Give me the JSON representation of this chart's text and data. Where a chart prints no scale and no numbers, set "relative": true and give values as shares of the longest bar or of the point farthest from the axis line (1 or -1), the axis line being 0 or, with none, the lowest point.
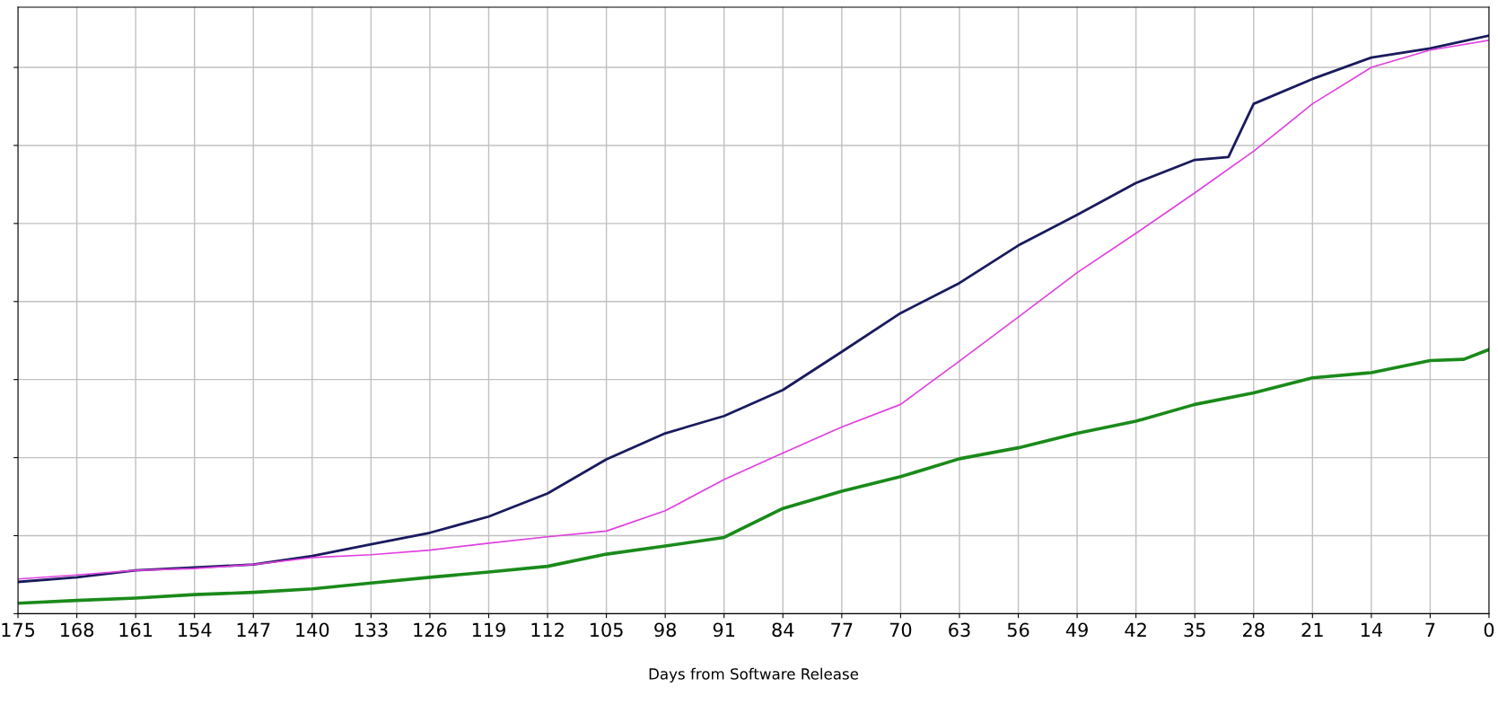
{
  "chart_data": {
    "type": "line",
    "xlabel": "Days from Software Release",
    "relative": true,
    "grid": true,
    "tick_labels": "x",
    "line_style": "solid",
    "marker": "none",
    "xlim": [
      175,
      0
    ],
    "xticks": [
      175,
      168,
      161,
      154,
      147,
      140,
      133,
      126,
      119,
      112,
      105,
      98,
      91,
      84,
      77,
      70,
      63,
      56,
      49,
      42,
      35,
      28,
      21,
      14,
      7,
      0
    ],
    "x": [
      175,
      168,
      161,
      154,
      147,
      140,
      133,
      126,
      119,
      112,
      105,
      98,
      91,
      84,
      77,
      70,
      63,
      56,
      49,
      42,
      35,
      28,
      21,
      14,
      7,
      0
    ],
    "series": [
      {
        "color": "#1a1a5e",
        "x": [
          175,
          168,
          161,
          154,
          147,
          140,
          133,
          126,
          119,
          112,
          105,
          98,
          91,
          84,
          77,
          70,
          63,
          56,
          49,
          42,
          35,
          31,
          28,
          21,
          14,
          7,
          0
        ],
        "values": [
          0.055,
          0.063,
          0.075,
          0.08,
          0.085,
          0.1,
          0.12,
          0.14,
          0.168,
          0.208,
          0.267,
          0.312,
          0.342,
          0.387,
          0.453,
          0.52,
          0.572,
          0.637,
          0.69,
          0.745,
          0.785,
          0.79,
          0.882,
          0.925,
          0.962,
          0.978,
          1.0
        ]
      },
      {
        "color": "#e040e0",
        "values": [
          0.06,
          0.067,
          0.075,
          0.078,
          0.085,
          0.097,
          0.102,
          0.11,
          0.122,
          0.133,
          0.143,
          0.178,
          0.232,
          0.278,
          0.323,
          0.362,
          0.437,
          0.513,
          0.59,
          0.658,
          0.728,
          0.8,
          0.882,
          0.945,
          0.975,
          0.992
        ]
      },
      {
        "color": "#1a8a1a",
        "x": [
          175,
          168,
          161,
          154,
          147,
          140,
          133,
          126,
          119,
          112,
          105,
          98,
          91,
          84,
          77,
          70,
          63,
          56,
          49,
          42,
          35,
          28,
          21,
          14,
          7,
          3,
          0
        ],
        "values": [
          0.018,
          0.023,
          0.027,
          0.033,
          0.037,
          0.043,
          0.053,
          0.063,
          0.072,
          0.082,
          0.103,
          0.117,
          0.132,
          0.182,
          0.212,
          0.237,
          0.268,
          0.287,
          0.312,
          0.333,
          0.362,
          0.382,
          0.408,
          0.417,
          0.438,
          0.44,
          0.457
        ]
      }
    ]
  }
}
